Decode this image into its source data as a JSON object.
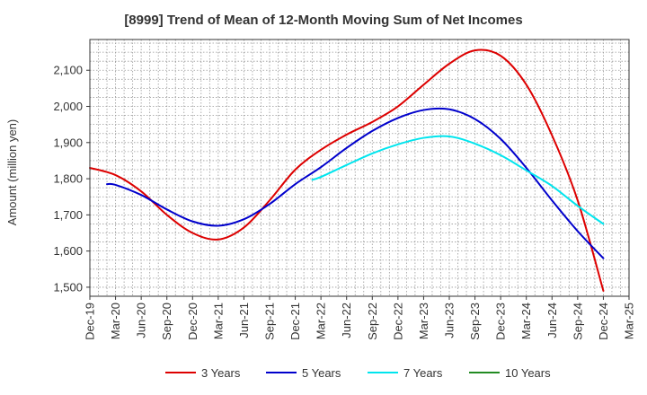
{
  "chart_data": {
    "type": "line",
    "title": "[8999]  Trend of Mean of 12-Month Moving Sum of Net Incomes",
    "xlabel": "",
    "ylabel": "Amount (million yen)",
    "ylim": [
      1475,
      2185
    ],
    "yticks": [
      1500,
      1600,
      1700,
      1800,
      1900,
      2000,
      2100
    ],
    "ytick_labels": [
      "1,500",
      "1,600",
      "1,700",
      "1,800",
      "1,900",
      "2,000",
      "2,100"
    ],
    "x_range": [
      0,
      63
    ],
    "xticks": [
      {
        "i": 0,
        "label": "Dec-19"
      },
      {
        "i": 3,
        "label": "Mar-20"
      },
      {
        "i": 6,
        "label": "Jun-20"
      },
      {
        "i": 9,
        "label": "Sep-20"
      },
      {
        "i": 12,
        "label": "Dec-20"
      },
      {
        "i": 15,
        "label": "Mar-21"
      },
      {
        "i": 18,
        "label": "Jun-21"
      },
      {
        "i": 21,
        "label": "Sep-21"
      },
      {
        "i": 24,
        "label": "Dec-21"
      },
      {
        "i": 27,
        "label": "Mar-22"
      },
      {
        "i": 30,
        "label": "Jun-22"
      },
      {
        "i": 33,
        "label": "Sep-22"
      },
      {
        "i": 36,
        "label": "Dec-22"
      },
      {
        "i": 39,
        "label": "Mar-23"
      },
      {
        "i": 42,
        "label": "Jun-23"
      },
      {
        "i": 45,
        "label": "Sep-23"
      },
      {
        "i": 48,
        "label": "Dec-23"
      },
      {
        "i": 51,
        "label": "Mar-24"
      },
      {
        "i": 54,
        "label": "Jun-24"
      },
      {
        "i": 57,
        "label": "Sep-24"
      },
      {
        "i": 60,
        "label": "Dec-24"
      },
      {
        "i": 63,
        "label": "Mar-25"
      }
    ],
    "grid": true,
    "legend_position": "bottom",
    "series": [
      {
        "name": "3 Years",
        "color": "#dd0000",
        "points": [
          [
            0,
            1830
          ],
          [
            3,
            1810
          ],
          [
            6,
            1765
          ],
          [
            9,
            1700
          ],
          [
            12,
            1650
          ],
          [
            15,
            1632
          ],
          [
            18,
            1665
          ],
          [
            21,
            1740
          ],
          [
            24,
            1825
          ],
          [
            27,
            1880
          ],
          [
            30,
            1922
          ],
          [
            33,
            1957
          ],
          [
            36,
            2000
          ],
          [
            39,
            2060
          ],
          [
            42,
            2118
          ],
          [
            45,
            2155
          ],
          [
            48,
            2140
          ],
          [
            51,
            2060
          ],
          [
            54,
            1920
          ],
          [
            57,
            1740
          ],
          [
            60,
            1490
          ]
        ]
      },
      {
        "name": "5 Years",
        "color": "#0000cc",
        "points": [
          [
            2,
            1785
          ],
          [
            3,
            1783
          ],
          [
            6,
            1755
          ],
          [
            9,
            1715
          ],
          [
            12,
            1682
          ],
          [
            15,
            1670
          ],
          [
            18,
            1688
          ],
          [
            21,
            1730
          ],
          [
            24,
            1785
          ],
          [
            27,
            1832
          ],
          [
            30,
            1885
          ],
          [
            33,
            1932
          ],
          [
            36,
            1968
          ],
          [
            39,
            1990
          ],
          [
            42,
            1992
          ],
          [
            45,
            1965
          ],
          [
            48,
            1910
          ],
          [
            51,
            1830
          ],
          [
            54,
            1740
          ],
          [
            57,
            1655
          ],
          [
            60,
            1580
          ]
        ]
      },
      {
        "name": "7 Years",
        "color": "#00e5ee",
        "points": [
          [
            26,
            1797
          ],
          [
            27,
            1805
          ],
          [
            30,
            1838
          ],
          [
            33,
            1870
          ],
          [
            36,
            1895
          ],
          [
            39,
            1913
          ],
          [
            42,
            1917
          ],
          [
            45,
            1897
          ],
          [
            48,
            1865
          ],
          [
            51,
            1823
          ],
          [
            54,
            1780
          ],
          [
            57,
            1725
          ],
          [
            60,
            1675
          ]
        ]
      },
      {
        "name": "10 Years",
        "color": "#228b22",
        "points": []
      }
    ]
  }
}
